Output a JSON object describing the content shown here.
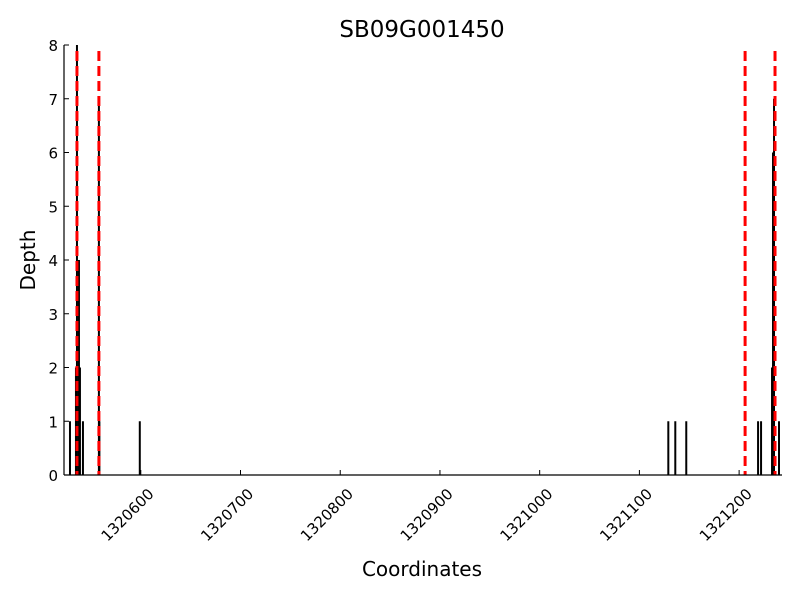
{
  "chart_data": {
    "type": "bar",
    "title": "SB09G001450",
    "xlabel": "Coordinates",
    "ylabel": "Depth",
    "xlim": [
      1320523,
      1321243
    ],
    "ylim": [
      0,
      8
    ],
    "x_ticks": [
      1320600,
      1320700,
      1320800,
      1320900,
      1321000,
      1321100,
      1321200
    ],
    "y_ticks": [
      0,
      1,
      2,
      3,
      4,
      5,
      6,
      7,
      8
    ],
    "grid": false,
    "depth_bars": [
      {
        "x": 1320529,
        "depth": 1
      },
      {
        "x": 1320535,
        "depth": 2
      },
      {
        "x": 1320536,
        "depth": 8
      },
      {
        "x": 1320538,
        "depth": 4
      },
      {
        "x": 1320539,
        "depth": 2
      },
      {
        "x": 1320542,
        "depth": 1
      },
      {
        "x": 1320558,
        "depth": 7
      },
      {
        "x": 1320558.5,
        "depth": 1
      },
      {
        "x": 1320599,
        "depth": 1
      },
      {
        "x": 1321129,
        "depth": 1
      },
      {
        "x": 1321136,
        "depth": 1
      },
      {
        "x": 1321147,
        "depth": 1
      },
      {
        "x": 1321219,
        "depth": 1
      },
      {
        "x": 1321222,
        "depth": 1
      },
      {
        "x": 1321233,
        "depth": 2
      },
      {
        "x": 1321234,
        "depth": 6
      },
      {
        "x": 1321235,
        "depth": 7
      },
      {
        "x": 1321240,
        "depth": 1
      }
    ],
    "reference_lines": {
      "style": "dashed",
      "color": "#ff0000",
      "x": [
        1320536,
        1320558,
        1321206,
        1321236
      ]
    },
    "bar_color": "#000000"
  }
}
